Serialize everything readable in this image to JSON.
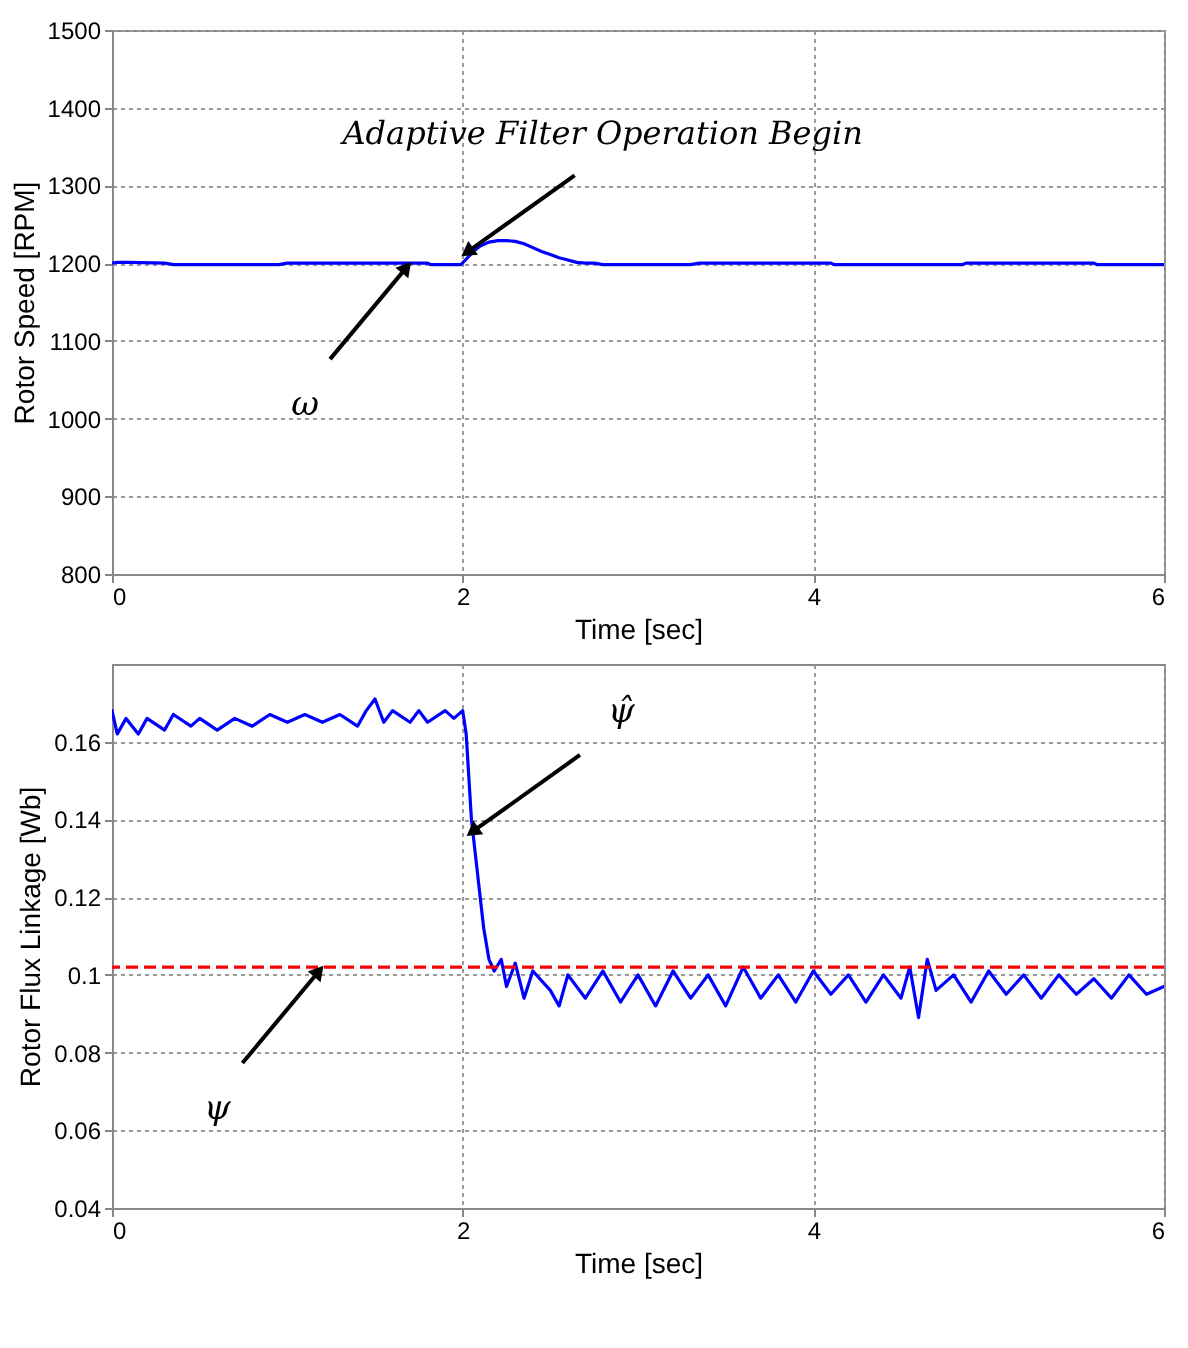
{
  "chart_data": [
    {
      "type": "line",
      "xlabel": "Time [sec]",
      "ylabel": "Rotor Speed [RPM]",
      "xlim": [
        0,
        6
      ],
      "ylim": [
        800,
        1500
      ],
      "xticks": [
        0,
        2,
        4,
        6
      ],
      "yticks": [
        800,
        900,
        1000,
        1100,
        1200,
        1300,
        1400,
        1500
      ],
      "grid": true,
      "line_style": "solid",
      "series": [
        {
          "color": "#0000ff",
          "x": [
            0,
            0.03,
            0.1,
            0.3,
            0.35,
            0.6,
            0.95,
            1.0,
            1.5,
            1.8,
            1.82,
            1.99,
            2.02,
            2.06,
            2.1,
            2.15,
            2.2,
            2.25,
            2.3,
            2.35,
            2.4,
            2.45,
            2.5,
            2.55,
            2.6,
            2.65,
            2.7,
            2.75,
            2.8,
            3.0,
            3.3,
            3.35,
            3.8,
            4.1,
            4.12,
            4.5,
            4.85,
            4.87,
            5.3,
            5.6,
            5.62,
            6.0
          ],
          "values": [
            1200,
            1201,
            1201,
            1200,
            1198,
            1198,
            1198,
            1200,
            1200,
            1200,
            1198,
            1198,
            1205,
            1215,
            1222,
            1227,
            1229,
            1229,
            1228,
            1225,
            1220,
            1215,
            1211,
            1207,
            1204,
            1201,
            1200,
            1200,
            1198,
            1198,
            1198,
            1200,
            1200,
            1200,
            1198,
            1198,
            1198,
            1200,
            1200,
            1200,
            1198,
            1198
          ]
        }
      ],
      "annotations": [
        {
          "text": "Adaptive Filter Operation Begin",
          "x": 2,
          "y": 1210
        },
        {
          "text": "ω",
          "x": 1.7,
          "y": 1200
        }
      ]
    },
    {
      "type": "line",
      "xlabel": "Time [sec]",
      "ylabel": "Rotor Flux Linkage [Wb]",
      "xlim": [
        0,
        6
      ],
      "ylim": [
        0.04,
        0.18
      ],
      "xticks": [
        0,
        2,
        4,
        6
      ],
      "yticks": [
        0.04,
        0.06,
        0.08,
        0.1,
        0.12,
        0.14,
        0.16
      ],
      "grid": true,
      "line_style": "solid",
      "series": [
        {
          "color": "#0000ff",
          "x": [
            0,
            0.03,
            0.08,
            0.15,
            0.2,
            0.3,
            0.35,
            0.45,
            0.5,
            0.6,
            0.7,
            0.8,
            0.9,
            1.0,
            1.1,
            1.2,
            1.3,
            1.4,
            1.45,
            1.5,
            1.55,
            1.6,
            1.7,
            1.75,
            1.8,
            1.9,
            1.95,
            2.0,
            2.02,
            2.05,
            2.08,
            2.12,
            2.15,
            2.18,
            2.22,
            2.25,
            2.3,
            2.35,
            2.4,
            2.5,
            2.55,
            2.6,
            2.7,
            2.8,
            2.9,
            3.0,
            3.1,
            3.2,
            3.3,
            3.4,
            3.5,
            3.6,
            3.7,
            3.8,
            3.9,
            4.0,
            4.1,
            4.2,
            4.3,
            4.4,
            4.5,
            4.55,
            4.6,
            4.65,
            4.7,
            4.8,
            4.9,
            5.0,
            5.1,
            5.2,
            5.3,
            5.4,
            5.5,
            5.6,
            5.7,
            5.8,
            5.9,
            6.0
          ],
          "values": [
            0.168,
            0.162,
            0.166,
            0.162,
            0.166,
            0.163,
            0.167,
            0.164,
            0.166,
            0.163,
            0.166,
            0.164,
            0.167,
            0.165,
            0.167,
            0.165,
            0.167,
            0.164,
            0.168,
            0.171,
            0.165,
            0.168,
            0.165,
            0.168,
            0.165,
            0.168,
            0.166,
            0.168,
            0.162,
            0.14,
            0.128,
            0.112,
            0.104,
            0.101,
            0.104,
            0.097,
            0.103,
            0.094,
            0.101,
            0.096,
            0.092,
            0.1,
            0.094,
            0.101,
            0.093,
            0.1,
            0.092,
            0.101,
            0.094,
            0.1,
            0.092,
            0.102,
            0.094,
            0.1,
            0.093,
            0.101,
            0.095,
            0.1,
            0.093,
            0.1,
            0.094,
            0.102,
            0.089,
            0.104,
            0.096,
            0.1,
            0.093,
            0.101,
            0.095,
            0.1,
            0.094,
            0.1,
            0.095,
            0.099,
            0.094,
            0.1,
            0.095,
            0.097
          ]
        }
      ],
      "ref_lines": [
        {
          "axis": "y",
          "value": 0.102,
          "color": "#ff0000",
          "line_style": "dashed"
        }
      ],
      "annotations": [
        {
          "text": "ψ̂",
          "x": 2.03,
          "y": 0.136
        },
        {
          "text": "ψ",
          "x": 1.2,
          "y": 0.102
        }
      ]
    }
  ]
}
